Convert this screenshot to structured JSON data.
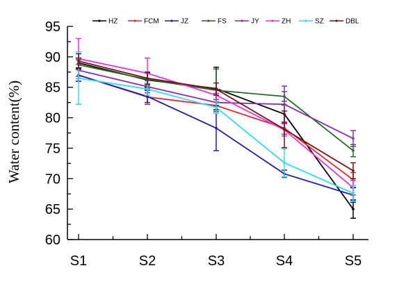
{
  "chart_data": {
    "type": "line",
    "categories": [
      "S1",
      "S2",
      "S3",
      "S4",
      "S5"
    ],
    "ylabel": "Water content(%)",
    "xlabel": "",
    "title": "",
    "ylim": [
      60,
      95
    ],
    "yticks": [
      60,
      65,
      70,
      75,
      80,
      85,
      90,
      95
    ],
    "grid": false,
    "legend_position": "top",
    "series": [
      {
        "name": "HZ",
        "color": "#000000",
        "values": [
          89.0,
          86.2,
          84.8,
          80.6,
          65.0
        ],
        "errors": [
          0.8,
          1.2,
          3.5,
          1.5,
          1.5
        ]
      },
      {
        "name": "FCM",
        "color": "#e8262a",
        "values": [
          87.0,
          83.4,
          82.0,
          78.3,
          69.8
        ],
        "errors": [
          1.0,
          1.2,
          1.0,
          1.0,
          1.2
        ]
      },
      {
        "name": "JZ",
        "color": "#1c1cbf",
        "values": [
          87.0,
          83.5,
          78.3,
          70.8,
          67.3
        ],
        "errors": [
          1.0,
          1.0,
          3.7,
          0.6,
          1.2
        ]
      },
      {
        "name": "FS",
        "color": "#1f6e1f",
        "values": [
          88.7,
          86.3,
          84.5,
          83.5,
          74.6
        ],
        "errors": [
          0.8,
          1.0,
          3.5,
          0.8,
          1.0
        ]
      },
      {
        "name": "JY",
        "color": "#8a2bb8",
        "values": [
          87.8,
          85.1,
          82.5,
          82.2,
          76.6
        ],
        "errors": [
          1.0,
          1.0,
          1.5,
          3.0,
          1.3
        ]
      },
      {
        "name": "ZH",
        "color": "#ee2ee6",
        "values": [
          89.7,
          87.3,
          83.7,
          78.0,
          68.5
        ],
        "errors": [
          3.3,
          2.5,
          1.0,
          1.0,
          1.2
        ]
      },
      {
        "name": "SZ",
        "color": "#28e0ea",
        "values": [
          86.5,
          84.7,
          81.7,
          72.6,
          67.6
        ],
        "errors": [
          4.3,
          1.0,
          1.0,
          2.3,
          1.3
        ]
      },
      {
        "name": "DBL",
        "color": "#7a1010",
        "values": [
          89.3,
          86.5,
          84.7,
          78.1,
          71.3
        ],
        "errors": [
          1.2,
          1.0,
          1.0,
          3.0,
          1.3
        ]
      }
    ]
  }
}
